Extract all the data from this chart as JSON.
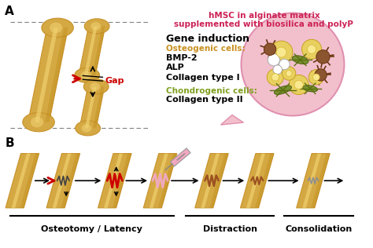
{
  "bg_color": "#ffffff",
  "bone_fill": "#D4A843",
  "bone_fill2": "#C8922A",
  "bone_light": "#F0D070",
  "bone_dark": "#B8820A",
  "title_color": "#CC2255",
  "title_text1": "hMSC in alginate matrix",
  "title_text2": "supplemented with biosilica and polyP",
  "gene_induction": "Gene induction",
  "osteo_label": "Osteogenic cells:",
  "osteo_color": "#C89020",
  "osteo_genes": [
    "BMP-2",
    "ALP",
    "Collagen type I"
  ],
  "chondro_label": "Chondrogenic cells:",
  "chondro_color": "#80A020",
  "chondro_genes": [
    "Collagen type II"
  ],
  "label_A": "A",
  "label_B": "B",
  "phase1": "Osteotomy / Latency",
  "phase2": "Distraction",
  "phase3": "Consolidation",
  "red_color": "#CC0000",
  "pink_color": "#F0A8C0",
  "pink_dark": "#E070A0",
  "circle_fill": "#F2C0CC",
  "circle_edge": "#E090B0",
  "gap_text": "Gap",
  "gap_color": "#CC0000",
  "brown_color": "#9B5020",
  "gray_color": "#909090"
}
